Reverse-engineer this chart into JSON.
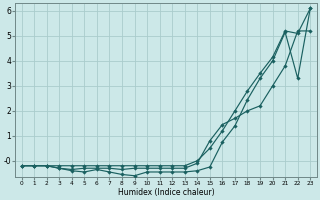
{
  "xlabel": "Humidex (Indice chaleur)",
  "bg_color": "#cce8e8",
  "grid_color": "#aacccc",
  "line_color": "#1a6060",
  "xlim": [
    -0.5,
    23.5
  ],
  "ylim": [
    -0.65,
    6.3
  ],
  "yticks": [
    0,
    1,
    2,
    3,
    4,
    5,
    6
  ],
  "xticks": [
    0,
    1,
    2,
    3,
    4,
    5,
    6,
    7,
    8,
    9,
    10,
    11,
    12,
    13,
    14,
    15,
    16,
    17,
    18,
    19,
    20,
    21,
    22,
    23
  ],
  "line1_x": [
    0,
    1,
    2,
    3,
    4,
    5,
    6,
    7,
    8,
    9,
    10,
    11,
    12,
    13,
    14,
    15,
    16,
    17,
    18,
    19,
    20,
    21,
    22,
    23
  ],
  "line1_y": [
    -0.2,
    -0.2,
    -0.2,
    -0.2,
    -0.2,
    -0.2,
    -0.2,
    -0.2,
    -0.2,
    -0.2,
    -0.2,
    -0.2,
    -0.2,
    -0.2,
    0.0,
    0.5,
    1.2,
    2.0,
    2.8,
    3.5,
    4.15,
    5.2,
    5.1,
    6.1
  ],
  "line2_x": [
    0,
    1,
    2,
    3,
    4,
    5,
    6,
    7,
    8,
    9,
    10,
    11,
    12,
    13,
    14,
    15,
    16,
    17,
    18,
    19,
    20,
    21,
    22,
    23
  ],
  "line2_y": [
    -0.2,
    -0.2,
    -0.2,
    -0.3,
    -0.35,
    -0.3,
    -0.3,
    -0.3,
    -0.35,
    -0.3,
    -0.3,
    -0.3,
    -0.3,
    -0.3,
    -0.1,
    0.8,
    1.45,
    1.7,
    2.0,
    2.2,
    3.0,
    3.8,
    5.2,
    5.2
  ],
  "line3_x": [
    0,
    1,
    2,
    3,
    4,
    5,
    6,
    7,
    8,
    9,
    10,
    11,
    12,
    13,
    14,
    15,
    16,
    17,
    18,
    19,
    20,
    21,
    22,
    23
  ],
  "line3_y": [
    -0.2,
    -0.2,
    -0.2,
    -0.3,
    -0.4,
    -0.45,
    -0.35,
    -0.45,
    -0.55,
    -0.6,
    -0.45,
    -0.45,
    -0.45,
    -0.45,
    -0.4,
    -0.25,
    0.75,
    1.4,
    2.45,
    3.3,
    4.0,
    5.15,
    3.3,
    6.1
  ]
}
